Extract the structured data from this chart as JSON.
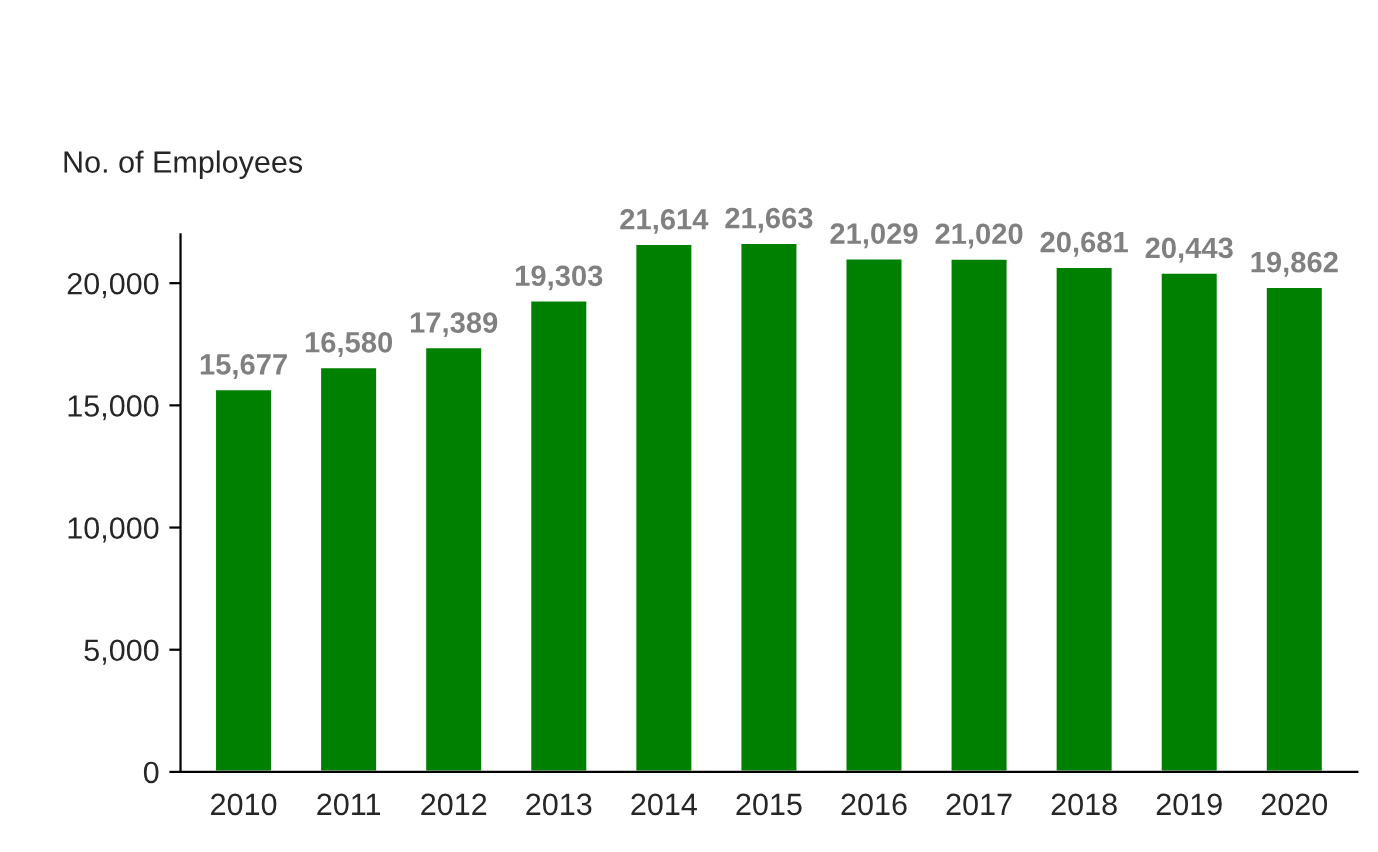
{
  "chart_data": {
    "type": "bar",
    "ylabel": "No. of Employees",
    "categories": [
      "2010",
      "2011",
      "2012",
      "2013",
      "2014",
      "2015",
      "2016",
      "2017",
      "2018",
      "2019",
      "2020"
    ],
    "values": [
      15677,
      16580,
      17389,
      19303,
      21614,
      21663,
      21029,
      21020,
      20681,
      20443,
      19862
    ],
    "color": "#008000",
    "value_labels": [
      "15,677",
      "16,580",
      "17,389",
      "19,303",
      "21,614",
      "21,663",
      "21,029",
      "21,020",
      "20,681",
      "20,443",
      "19,862"
    ],
    "grid": false,
    "legend": false,
    "ylim": [
      0,
      22000
    ],
    "yticks": [
      {
        "value": 0,
        "label": "0"
      },
      {
        "value": 5000,
        "label": "5,000"
      },
      {
        "value": 10000,
        "label": "10,000"
      },
      {
        "value": 15000,
        "label": "15,000"
      },
      {
        "value": 20000,
        "label": "20,000"
      }
    ]
  }
}
